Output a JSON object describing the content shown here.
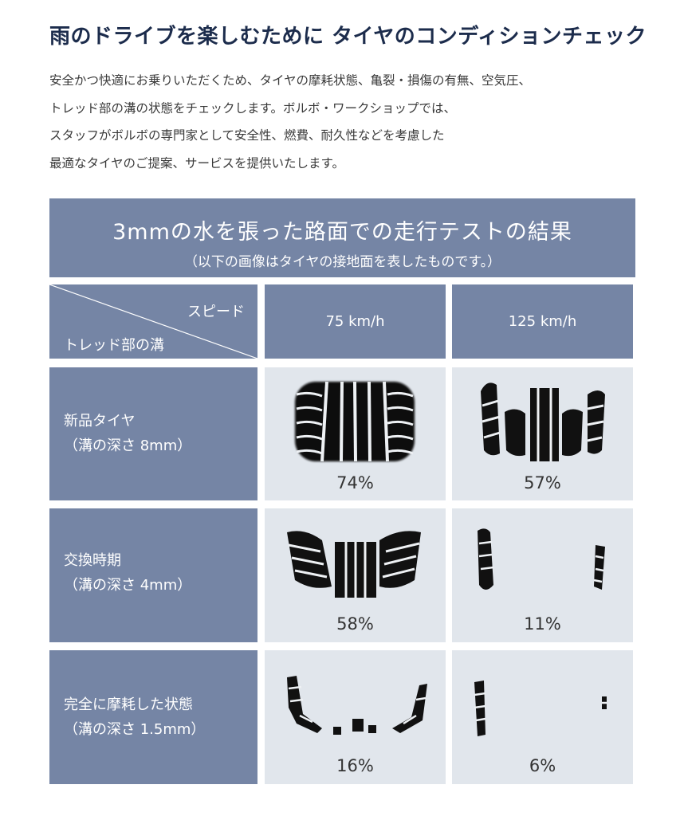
{
  "page": {
    "title": "雨のドライブを楽しむために タイヤのコンディションチェック",
    "intro_lines": [
      "安全かつ快適にお乗りいただくため、タイヤの摩耗状態、亀裂・損傷の有無、空気圧、",
      "トレッド部の溝の状態をチェックします。ボルボ・ワークショップでは、",
      "スタッフがボルボの専門家として安全性、燃費、耐久性などを考慮した",
      "最適なタイヤのご提案、サービスを提供いたします。"
    ]
  },
  "table": {
    "title": "3mmの水を張った路面での走行テストの結果",
    "subtitle": "（以下の画像はタイヤの接地面を表したものです。）",
    "corner_speed": "スピード",
    "corner_tread": "トレッド部の溝",
    "speeds": [
      "75 km/h",
      "125 km/h"
    ],
    "rows": [
      {
        "label_1": "新品タイヤ",
        "label_2": "（溝の深さ 8mm）",
        "values": [
          "74%",
          "57%"
        ]
      },
      {
        "label_1": "交換時期",
        "label_2": "（溝の深さ 4mm）",
        "values": [
          "58%",
          "11%"
        ]
      },
      {
        "label_1": "完全に摩耗した状態",
        "label_2": "（溝の深さ 1.5mm）",
        "values": [
          "16%",
          "6%"
        ]
      }
    ]
  },
  "colors": {
    "header_blue": "#7585a5",
    "image_bg": "#e1e6ec",
    "title_navy": "#1c2c4c"
  }
}
